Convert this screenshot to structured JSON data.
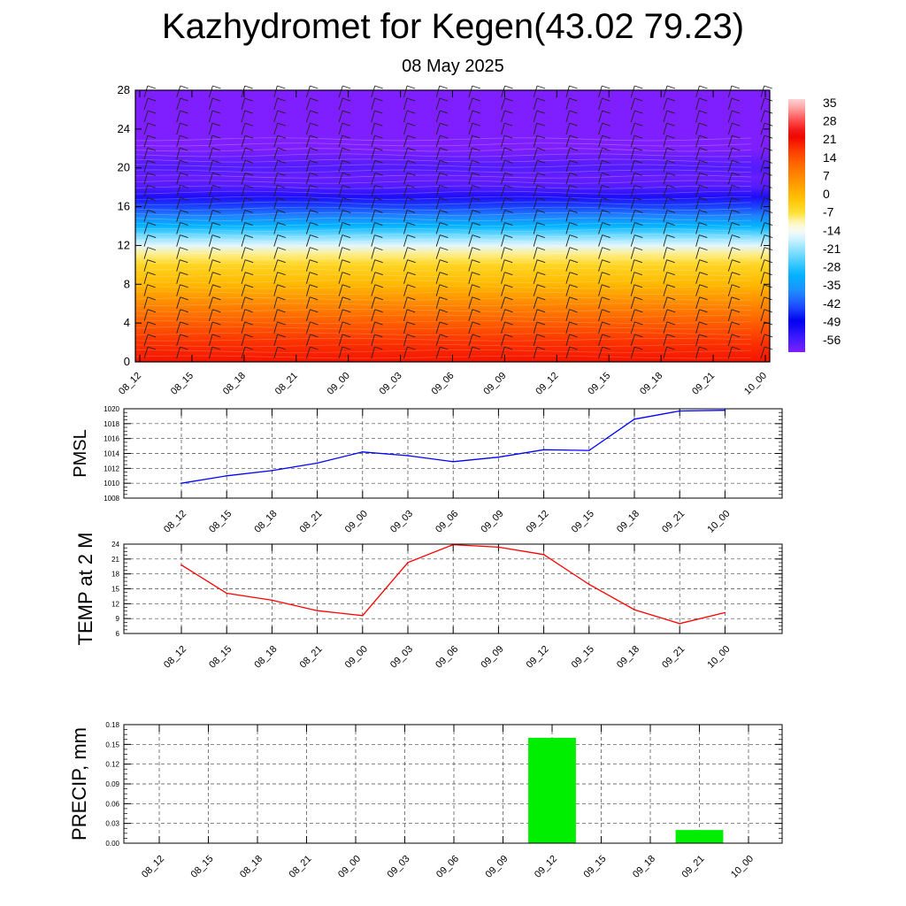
{
  "title": "Kazhydromet for Kegen(43.02 79.23)",
  "subtitle": "08 May 2025",
  "times": [
    "08_12",
    "08_15",
    "08_18",
    "08_21",
    "09_00",
    "09_03",
    "09_06",
    "09_09",
    "09_12",
    "09_15",
    "09_18",
    "09_21",
    "10_00"
  ],
  "colors": {
    "pmsl_line": "#0000ff",
    "temp_line": "#ff0000",
    "precip_bar": "#00ee00",
    "grid": "#444444"
  },
  "chart_data": [
    {
      "type": "heatmap",
      "id": "temperature_profile",
      "y_range": [
        0,
        28
      ],
      "y_ticks": [
        "0",
        "4",
        "8",
        "12",
        "16",
        "20",
        "24",
        "28"
      ],
      "x_categories": [
        "08_12",
        "08_15",
        "08_18",
        "08_21",
        "09_00",
        "09_03",
        "09_06",
        "09_09",
        "09_12",
        "09_15",
        "09_18",
        "09_21",
        "10_00"
      ],
      "colorbar_labels": [
        "35",
        "28",
        "21",
        "14",
        "7",
        "0",
        "-7",
        "-14",
        "-21",
        "-28",
        "-35",
        "-42",
        "-49",
        "-56"
      ],
      "colorbar_range": [
        -60,
        38
      ],
      "vertical_profile": [
        {
          "level": 0,
          "value": 22
        },
        {
          "level": 2,
          "value": 19
        },
        {
          "level": 4,
          "value": 14
        },
        {
          "level": 6,
          "value": 8
        },
        {
          "level": 8,
          "value": 1
        },
        {
          "level": 10,
          "value": -4
        },
        {
          "level": 11,
          "value": -8
        },
        {
          "level": 12,
          "value": -15
        },
        {
          "level": 13,
          "value": -22
        },
        {
          "level": 14,
          "value": -30
        },
        {
          "level": 15,
          "value": -37
        },
        {
          "level": 16,
          "value": -43
        },
        {
          "level": 17,
          "value": -51
        },
        {
          "level": 18,
          "value": -56
        },
        {
          "level": 19,
          "value": -58
        },
        {
          "level": 20,
          "value": -56
        },
        {
          "level": 21,
          "value": -58
        },
        {
          "level": 22,
          "value": -60
        },
        {
          "level": 28,
          "value": -60
        }
      ],
      "wind_barbs": true,
      "grid": false
    },
    {
      "type": "line",
      "id": "pmsl",
      "ylabel": "PMSL",
      "categories": [
        "08_12",
        "08_15",
        "08_18",
        "08_21",
        "09_00",
        "09_03",
        "09_06",
        "09_09",
        "09_12",
        "09_15",
        "09_18",
        "09_21",
        "10_00"
      ],
      "values": [
        1010.0,
        1011.0,
        1011.7,
        1012.7,
        1014.2,
        1013.7,
        1012.9,
        1013.5,
        1014.5,
        1014.4,
        1018.6,
        1019.7,
        1019.8
      ],
      "ylim": [
        1008,
        1020
      ],
      "y_ticks": [
        "1008",
        "1010",
        "1012",
        "1014",
        "1016",
        "1018",
        "1020"
      ],
      "grid": true
    },
    {
      "type": "line",
      "id": "temp2m",
      "ylabel": "TEMP at 2 M",
      "categories": [
        "08_12",
        "08_15",
        "08_18",
        "08_21",
        "09_00",
        "09_03",
        "09_06",
        "09_09",
        "09_12",
        "09_15",
        "09_18",
        "09_21",
        "10_00"
      ],
      "values": [
        19.8,
        14.1,
        12.7,
        10.6,
        9.6,
        20.3,
        23.9,
        23.4,
        21.9,
        15.9,
        10.8,
        8.0,
        10.2
      ],
      "ylim": [
        6,
        24
      ],
      "y_ticks": [
        "6",
        "9",
        "12",
        "15",
        "18",
        "21",
        "24"
      ],
      "grid": true
    },
    {
      "type": "bar",
      "id": "precip",
      "ylabel": "PRECIP, mm",
      "categories": [
        "08_12",
        "08_15",
        "08_18",
        "08_21",
        "09_00",
        "09_03",
        "09_06",
        "09_09",
        "09_12",
        "09_15",
        "09_18",
        "09_21",
        "10_00"
      ],
      "values": [
        0,
        0,
        0,
        0,
        0,
        0,
        0,
        0,
        0.16,
        0,
        0,
        0.02,
        0
      ],
      "ylim": [
        0,
        0.18
      ],
      "y_ticks": [
        "0.00",
        "0.03",
        "0.06",
        "0.09",
        "0.12",
        "0.15",
        "0.18"
      ],
      "grid": true
    }
  ]
}
